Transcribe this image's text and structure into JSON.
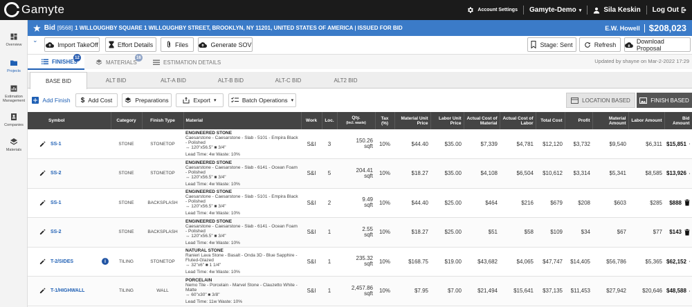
{
  "app": {
    "name": "Gamyte"
  },
  "topbar": {
    "settings_label": "Account Settings",
    "org_label": "Gamyte-Demo",
    "user_name": "Sila Keskin",
    "logout_label": "Log Out"
  },
  "sidebar": {
    "items": [
      {
        "label": "Overview",
        "icon": "dashboard-icon"
      },
      {
        "label": "Projects",
        "icon": "folder-icon"
      },
      {
        "label": "Estimation Management",
        "icon": "chart-icon"
      },
      {
        "label": "Companies",
        "icon": "contact-icon"
      },
      {
        "label": "Materials",
        "icon": "layers-icon"
      }
    ]
  },
  "bid": {
    "prefix": "Bid",
    "number": "[9568]",
    "title": "1 WILLOUGHBY SQUARE 1 WILLOUGHBY STREET, BROOKLYN, NY 11201, UNITED STATES OF AMERICA | ISSUED FOR BID",
    "contractor": "E.W. Howell",
    "amount": "$208,023"
  },
  "toolbar": {
    "import": "Import TakeOff",
    "effort": "Effort Details",
    "files": "Files",
    "sov": "Generate SOV",
    "stage": "Stage: Sent",
    "refresh": "Refresh",
    "download": "Download Proposal"
  },
  "tabs": [
    {
      "label": "FINISHES",
      "badge": "12"
    },
    {
      "label": "MATERIALS",
      "badge": "16"
    },
    {
      "label": "ESTIMATION DETAILS",
      "badge": ""
    }
  ],
  "updated": "Updated by shayne on Mar-2-2022 17:29",
  "subtabs": [
    "BASE BID",
    "ALT BID",
    "ALT-A BID",
    "ALT-B BID",
    "ALT-C BID",
    "ALT2 BID"
  ],
  "actions": {
    "add_finish": "Add Finish",
    "add_cost": "Add Cost",
    "preparations": "Preparations",
    "export": "Export",
    "batch": "Batch Operations",
    "location_based": "LOCATION BASED",
    "finish_based": "FINISH BASED"
  },
  "columns": {
    "symbol": "Symbol",
    "category": "Category",
    "finish_type": "Finish Type",
    "material": "Material",
    "work": "Work",
    "loc": "Loc.",
    "qty": "Qty.",
    "qty_sub": "(incl. waste)",
    "tax": "Tax (%)",
    "mat_price": "Material Unit Price",
    "lab_price": "Labor Unit Price",
    "act_mat": "Actual Cost of Material",
    "act_lab": "Actual Cost of Labor",
    "total": "Total Cost",
    "profit": "Profit",
    "mat_amt": "Material Amount",
    "lab_amt": "Labor Amount",
    "bid_amt": "Bid Amount"
  },
  "rows": [
    {
      "symbol": "SS-1",
      "info": false,
      "category": "STONE",
      "finish_type": "STONETOP",
      "mat_title": "ENGINEERED STONE",
      "mat_desc": "Caesarstone - Caesarstone - Slab - 5101 - Empira Black - Polished",
      "mat_dims": "↔ 120\"x56.5\" ■ 3/4\"",
      "mat_lead": "Lead Time: 4w  Waste: 10%",
      "work": "S&I",
      "loc": "3",
      "qty": "150.26",
      "unit": "sqft",
      "tax": "10%",
      "mat_price": "$44.40",
      "lab_price": "$35.00",
      "act_mat": "$7,339",
      "act_lab": "$4,781",
      "total": "$12,120",
      "profit": "$3,732",
      "mat_amt": "$9,540",
      "lab_amt": "$6,311",
      "bid_amt": "$15,851"
    },
    {
      "symbol": "SS-2",
      "info": false,
      "category": "STONE",
      "finish_type": "STONETOP",
      "mat_title": "ENGINEERED STONE",
      "mat_desc": "Caesarstone - Caesarstone - Slab - 6141 - Ocean Foam - Polished",
      "mat_dims": "↔ 120\"x56.5\" ■ 3/4\"",
      "mat_lead": "Lead Time: 4w  Waste: 10%",
      "work": "S&I",
      "loc": "5",
      "qty": "204.41",
      "unit": "sqft",
      "tax": "10%",
      "mat_price": "$18.27",
      "lab_price": "$35.00",
      "act_mat": "$4,108",
      "act_lab": "$6,504",
      "total": "$10,612",
      "profit": "$3,314",
      "mat_amt": "$5,341",
      "lab_amt": "$8,585",
      "bid_amt": "$13,926"
    },
    {
      "symbol": "SS-1",
      "info": false,
      "category": "STONE",
      "finish_type": "BACKSPLASH",
      "mat_title": "ENGINEERED STONE",
      "mat_desc": "Caesarstone - Caesarstone - Slab - 5101 - Empira Black - Polished",
      "mat_dims": "↔ 120\"x56.5\" ■ 3/4\"",
      "mat_lead": "Lead Time: 4w  Waste: 10%",
      "work": "S&I",
      "loc": "2",
      "qty": "9.49",
      "unit": "sqft",
      "tax": "10%",
      "mat_price": "$44.40",
      "lab_price": "$25.00",
      "act_mat": "$464",
      "act_lab": "$216",
      "total": "$679",
      "profit": "$208",
      "mat_amt": "$603",
      "lab_amt": "$285",
      "bid_amt": "$888"
    },
    {
      "symbol": "SS-2",
      "info": false,
      "category": "STONE",
      "finish_type": "BACKSPLASH",
      "mat_title": "ENGINEERED STONE",
      "mat_desc": "Caesarstone - Caesarstone - Slab - 6141 - Ocean Foam - Polished",
      "mat_dims": "↔ 120\"x56.5\" ■ 3/4\"",
      "mat_lead": "Lead Time: 4w  Waste: 10%",
      "work": "S&I",
      "loc": "1",
      "qty": "2.55",
      "unit": "sqft",
      "tax": "10%",
      "mat_price": "$18.27",
      "lab_price": "$25.00",
      "act_mat": "$51",
      "act_lab": "$58",
      "total": "$109",
      "profit": "$34",
      "mat_amt": "$67",
      "lab_amt": "$77",
      "bid_amt": "$143"
    },
    {
      "symbol": "T-2/SIDES",
      "info": true,
      "category": "TILING",
      "finish_type": "STONETOP",
      "mat_title": "NATURAL STONE",
      "mat_desc": "Ranieri Lava Stone - Basalt - Onda 3D - Blue Sapphire - Fluted-Glazed",
      "mat_dims": "↔ 32\"x6\" ■ 1 1/4\"",
      "mat_lead": "Lead Time: 4w  Waste: 10%",
      "work": "S&I",
      "loc": "1",
      "qty": "235.32",
      "unit": "sqft",
      "tax": "10%",
      "mat_price": "$168.75",
      "lab_price": "$19.00",
      "act_mat": "$43,682",
      "act_lab": "$4,065",
      "total": "$47,747",
      "profit": "$14,405",
      "mat_amt": "$56,786",
      "lab_amt": "$5,365",
      "bid_amt": "$62,152"
    },
    {
      "symbol": "T-1/HIGHWALL",
      "info": false,
      "category": "TILING",
      "finish_type": "WALL",
      "mat_title": "PORCELAIN",
      "mat_desc": "Nemo Tile - Porcelain - Marvel Stone - Clauzetto White - Matte",
      "mat_dims": "↔ 60\"x30\" ■ 3/8\"",
      "mat_lead": "Lead Time: 11w  Waste: 10%",
      "work": "S&I",
      "loc": "1",
      "qty": "2,457.86",
      "unit": "sqft",
      "tax": "10%",
      "mat_price": "$7.95",
      "lab_price": "$7.00",
      "act_mat": "$21,494",
      "act_lab": "$15,641",
      "total": "$37,135",
      "profit": "$11,453",
      "mat_amt": "$27,942",
      "lab_amt": "$20,646",
      "bid_amt": "$48,588"
    }
  ]
}
